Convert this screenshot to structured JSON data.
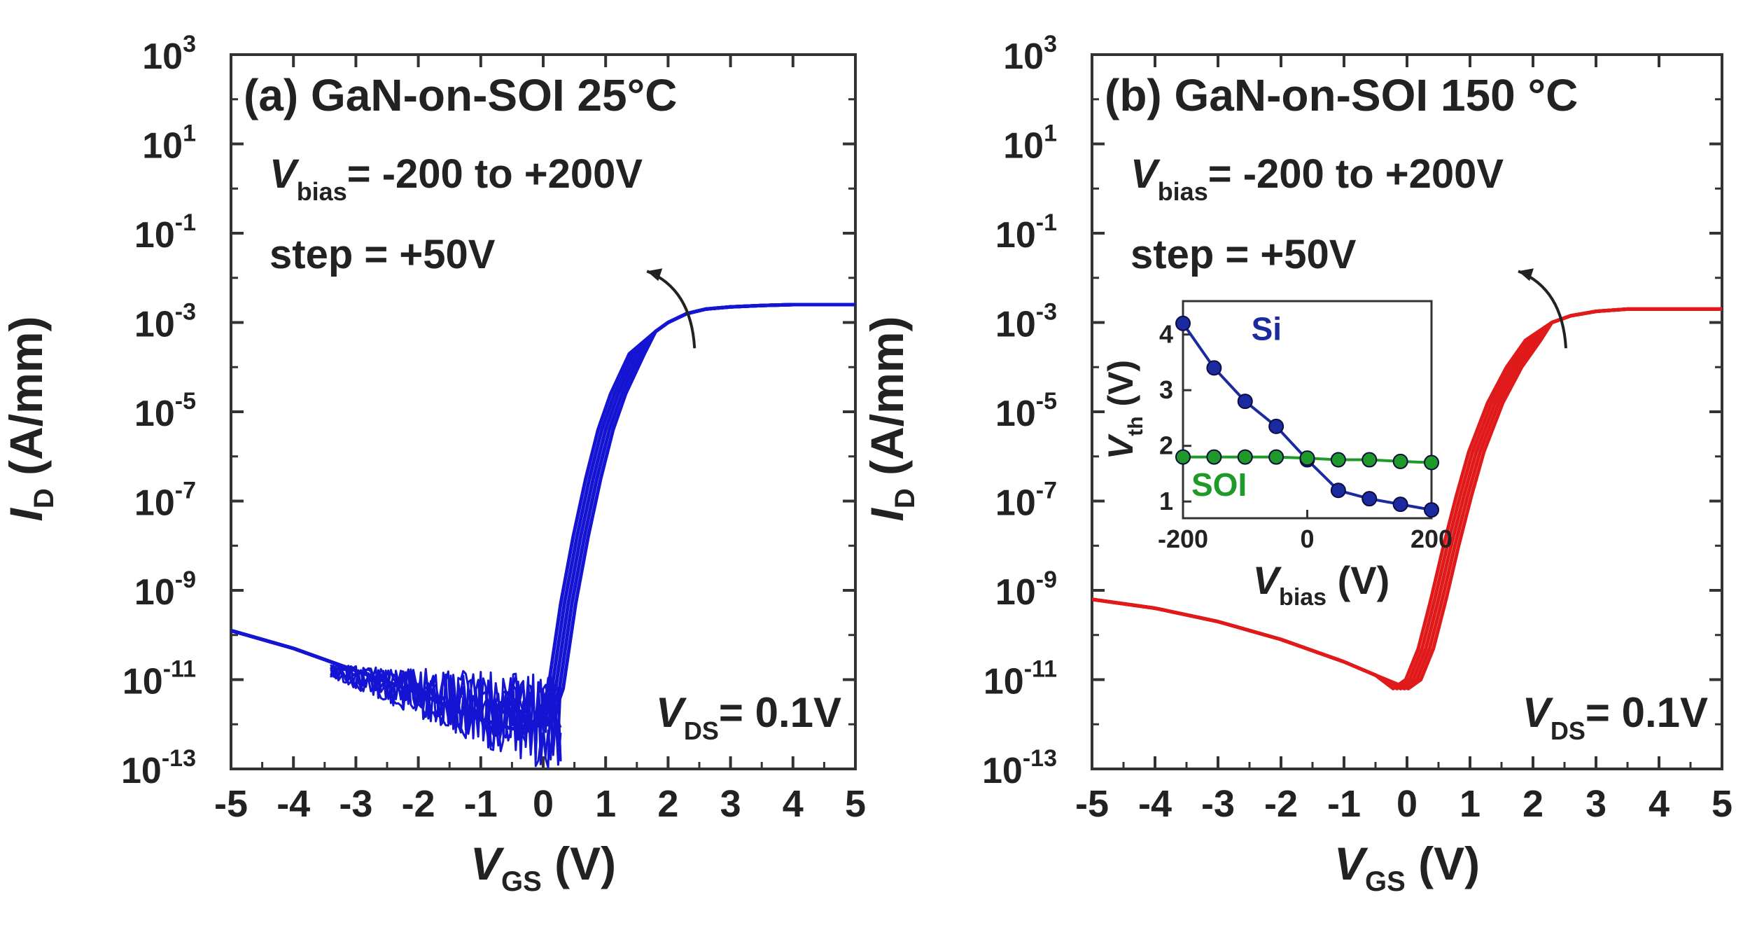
{
  "chart_data": [
    {
      "type": "line",
      "panel_label": "(a) GaN-on-SOI  25°C",
      "xlabel": {
        "main": "V",
        "sub": "GS",
        "unit": " (V)"
      },
      "ylabel": {
        "main": "I",
        "sub": "D",
        "unit": " (A/mm)"
      },
      "xlim": [
        -5,
        5
      ],
      "ylim_log10": [
        -13,
        3
      ],
      "x_ticks": [
        "-5",
        "-4",
        "-3",
        "-2",
        "-1",
        "0",
        "1",
        "2",
        "3",
        "4",
        "5"
      ],
      "y_ticks": [
        {
          "base": "10",
          "exp": "3"
        },
        {
          "base": "10",
          "exp": "1"
        },
        {
          "base": "10",
          "exp": "-1"
        },
        {
          "base": "10",
          "exp": "-3"
        },
        {
          "base": "10",
          "exp": "-5"
        },
        {
          "base": "10",
          "exp": "-7"
        },
        {
          "base": "10",
          "exp": "-9"
        },
        {
          "base": "10",
          "exp": "-11"
        },
        {
          "base": "10",
          "exp": "-13"
        }
      ],
      "annotation_bias": {
        "main": "V",
        "sub": "bias",
        "text": "= -200 to +200V"
      },
      "annotation_step": "step = +50V",
      "annotation_vds": {
        "main": "V",
        "sub": "DS",
        "text": "= 0.1V"
      },
      "line_color": "#1414d2",
      "series": [
        {
          "name": "I_D (25°C, all Vbias)",
          "x": [
            -5,
            -4,
            -3,
            -2,
            -1.2,
            -0.5,
            0.0,
            0.2,
            0.4,
            0.6,
            0.8,
            1.0,
            1.2,
            1.5,
            1.8,
            2.0,
            2.3,
            2.6,
            3.0,
            3.5,
            4.0,
            5.0
          ],
          "log10_y": [
            -9.9,
            -10.3,
            -10.8,
            -11.3,
            -11.8,
            -12.1,
            -12.0,
            -11.2,
            -9.3,
            -7.8,
            -6.5,
            -5.4,
            -4.6,
            -3.7,
            -3.2,
            -3.0,
            -2.8,
            -2.7,
            -2.65,
            -2.62,
            -2.6,
            -2.6
          ]
        }
      ],
      "noisy_off_state": {
        "x_start": -3.2,
        "x_end": 0.3,
        "floor_log10": -13
      }
    },
    {
      "type": "line",
      "panel_label": "(b) GaN-on-SOI 150 °C",
      "xlabel": {
        "main": "V",
        "sub": "GS",
        "unit": " (V)"
      },
      "ylabel": {
        "main": "I",
        "sub": "D",
        "unit": " (A/mm)"
      },
      "xlim": [
        -5,
        5
      ],
      "ylim_log10": [
        -13,
        3
      ],
      "x_ticks": [
        "-5",
        "-4",
        "-3",
        "-2",
        "-1",
        "0",
        "1",
        "2",
        "3",
        "4",
        "5"
      ],
      "y_ticks": [
        {
          "base": "10",
          "exp": "3"
        },
        {
          "base": "10",
          "exp": "1"
        },
        {
          "base": "10",
          "exp": "-1"
        },
        {
          "base": "10",
          "exp": "-3"
        },
        {
          "base": "10",
          "exp": "-5"
        },
        {
          "base": "10",
          "exp": "-7"
        },
        {
          "base": "10",
          "exp": "-9"
        },
        {
          "base": "10",
          "exp": "-11"
        },
        {
          "base": "10",
          "exp": "-13"
        }
      ],
      "annotation_bias": {
        "main": "V",
        "sub": "bias",
        "text": "= -200 to +200V"
      },
      "annotation_step": "step = +50V",
      "annotation_vds": {
        "main": "V",
        "sub": "DS",
        "text": "= 0.1V"
      },
      "line_color": "#e01a1a",
      "series": [
        {
          "name": "I_D (150°C, all Vbias)",
          "x": [
            -5,
            -4,
            -3,
            -2,
            -1,
            -0.5,
            -0.1,
            0.1,
            0.3,
            0.5,
            0.7,
            0.9,
            1.1,
            1.4,
            1.7,
            2.0,
            2.3,
            2.6,
            3.0,
            3.5,
            4.0,
            5.0
          ],
          "log10_y": [
            -9.2,
            -9.4,
            -9.7,
            -10.1,
            -10.6,
            -10.9,
            -11.2,
            -11.0,
            -10.3,
            -9.2,
            -8.0,
            -6.9,
            -5.9,
            -4.8,
            -4.0,
            -3.4,
            -3.0,
            -2.85,
            -2.75,
            -2.7,
            -2.7,
            -2.7
          ]
        }
      ],
      "inset": {
        "type": "line",
        "xlabel": {
          "main": "V",
          "sub": "bias",
          "unit": " (V)"
        },
        "ylabel": {
          "main": "V",
          "sub": "th",
          "unit": " (V)"
        },
        "xlim": [
          -200,
          200
        ],
        "ylim": [
          0.7,
          4.6
        ],
        "x_ticks": [
          "-200",
          "0",
          "200"
        ],
        "y_ticks": [
          "1",
          "2",
          "3",
          "4"
        ],
        "series": [
          {
            "name": "Si",
            "color": "#1c2aa0",
            "x": [
              -200,
              -150,
              -100,
              -50,
              0,
              50,
              100,
              150,
              200
            ],
            "y": [
              4.2,
              3.4,
              2.8,
              2.35,
              1.75,
              1.2,
              1.05,
              0.95,
              0.85
            ]
          },
          {
            "name": "SOI",
            "color": "#1f9a2a",
            "x": [
              -200,
              -150,
              -100,
              -50,
              0,
              50,
              100,
              150,
              200
            ],
            "y": [
              1.8,
              1.8,
              1.8,
              1.8,
              1.78,
              1.75,
              1.75,
              1.72,
              1.7
            ]
          }
        ]
      }
    }
  ]
}
